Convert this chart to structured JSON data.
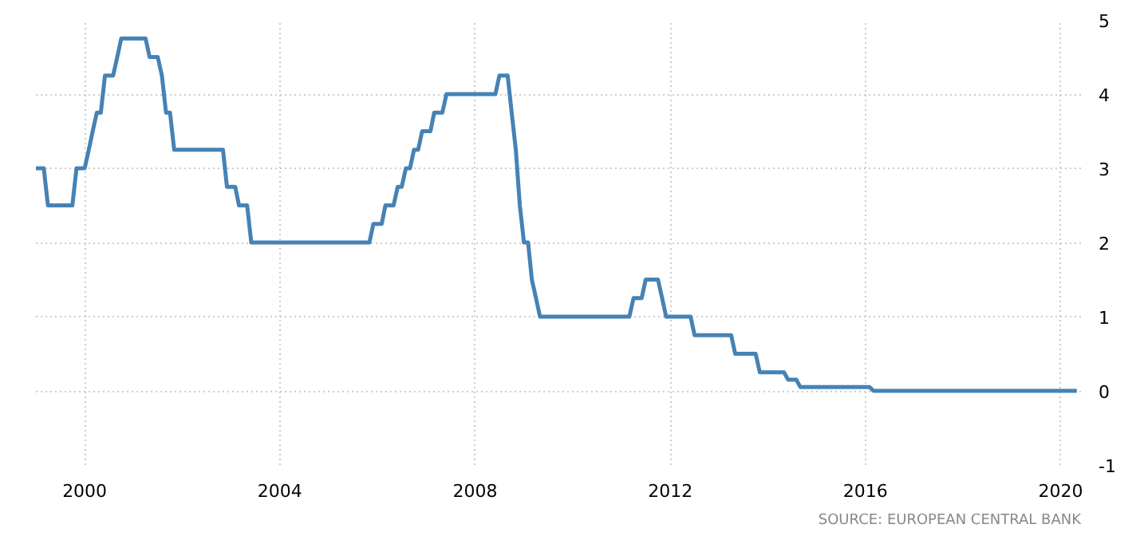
{
  "chart_data": {
    "type": "line",
    "x": [
      "1999-01",
      "1999-03",
      "1999-04",
      "1999-10",
      "1999-11",
      "2000-01",
      "2000-02",
      "2000-03",
      "2000-04",
      "2000-05",
      "2000-06",
      "2000-08",
      "2000-09",
      "2000-10",
      "2001-04",
      "2001-05",
      "2001-07",
      "2001-08",
      "2001-09",
      "2001-10",
      "2001-11",
      "2002-11",
      "2002-12",
      "2003-02",
      "2003-03",
      "2003-05",
      "2003-06",
      "2005-11",
      "2005-12",
      "2006-02",
      "2006-03",
      "2006-05",
      "2006-06",
      "2006-07",
      "2006-08",
      "2006-09",
      "2006-10",
      "2006-11",
      "2006-12",
      "2007-02",
      "2007-03",
      "2007-05",
      "2007-06",
      "2008-06",
      "2008-07",
      "2008-09",
      "2008-10",
      "2008-11",
      "2008-12",
      "2009-01",
      "2009-02",
      "2009-03",
      "2009-04",
      "2009-05",
      "2011-03",
      "2011-04",
      "2011-06",
      "2011-07",
      "2011-10",
      "2011-11",
      "2011-12",
      "2012-06",
      "2012-07",
      "2013-04",
      "2013-05",
      "2013-10",
      "2013-11",
      "2014-05",
      "2014-06",
      "2014-08",
      "2014-09",
      "2016-02",
      "2016-03",
      "2020-05"
    ],
    "series": [
      {
        "color": "#4682b4",
        "values": [
          3.0,
          3.0,
          2.5,
          2.5,
          3.0,
          3.0,
          3.25,
          3.5,
          3.75,
          3.75,
          4.25,
          4.25,
          4.5,
          4.75,
          4.75,
          4.5,
          4.5,
          4.25,
          3.75,
          3.75,
          3.25,
          3.25,
          2.75,
          2.75,
          2.5,
          2.5,
          2.0,
          2.0,
          2.25,
          2.25,
          2.5,
          2.5,
          2.75,
          2.75,
          3.0,
          3.0,
          3.25,
          3.25,
          3.5,
          3.5,
          3.75,
          3.75,
          4.0,
          4.0,
          4.25,
          4.25,
          3.75,
          3.25,
          2.5,
          2.0,
          2.0,
          1.5,
          1.25,
          1.0,
          1.0,
          1.25,
          1.25,
          1.5,
          1.5,
          1.25,
          1.0,
          1.0,
          0.75,
          0.75,
          0.5,
          0.5,
          0.25,
          0.25,
          0.15,
          0.15,
          0.05,
          0.05,
          0.0,
          0.0
        ]
      }
    ],
    "xlim": [
      "1999-01",
      "2020-06"
    ],
    "xticks": [
      "2000",
      "2004",
      "2008",
      "2012",
      "2016",
      "2020"
    ],
    "ylim": [
      -1,
      5
    ],
    "yticks": [
      -1,
      0,
      1,
      2,
      3,
      4,
      5
    ],
    "grid": true,
    "annotations": [
      "SOURCE: EUROPEAN CENTRAL BANK"
    ]
  }
}
